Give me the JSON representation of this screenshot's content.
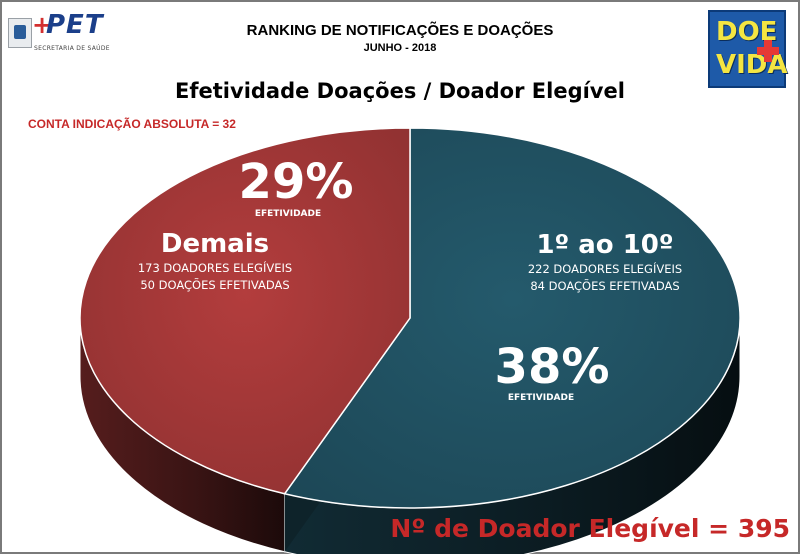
{
  "header": {
    "title": "RANKING DE NOTIFICAÇÕES E DOAÇÕES",
    "subtitle": "JUNHO - 2018",
    "logo_left_text": "PET",
    "logo_left_subtext": "SECRETARIA DE SAÚDE",
    "logo_right_top": "DOE",
    "logo_right_bottom": "VIDA"
  },
  "note": "CONTA INDICAÇÃO ABSOLUTA = 32",
  "footer": "Nº de Doador Elegível  = 395",
  "chart_data": {
    "type": "pie",
    "title": "Efetividade Doações / Doador Elegível",
    "slices": [
      {
        "label": "1º ao 10º",
        "value": 222,
        "line1": "222 DOADORES ELEGÍVEIS",
        "line2": "84 DOAÇÕES EFETIVADAS",
        "percent_label": "38%",
        "percent_caption": "EFETIVIDADE",
        "color": "#1f4e5e"
      },
      {
        "label": "Demais",
        "value": 173,
        "line1": "173 DOADORES ELEGÍVEIS",
        "line2": "50 DOAÇÕES EFETIVADAS",
        "percent_label": "29%",
        "percent_caption": "EFETIVIDADE",
        "color": "#9c3535"
      }
    ]
  }
}
